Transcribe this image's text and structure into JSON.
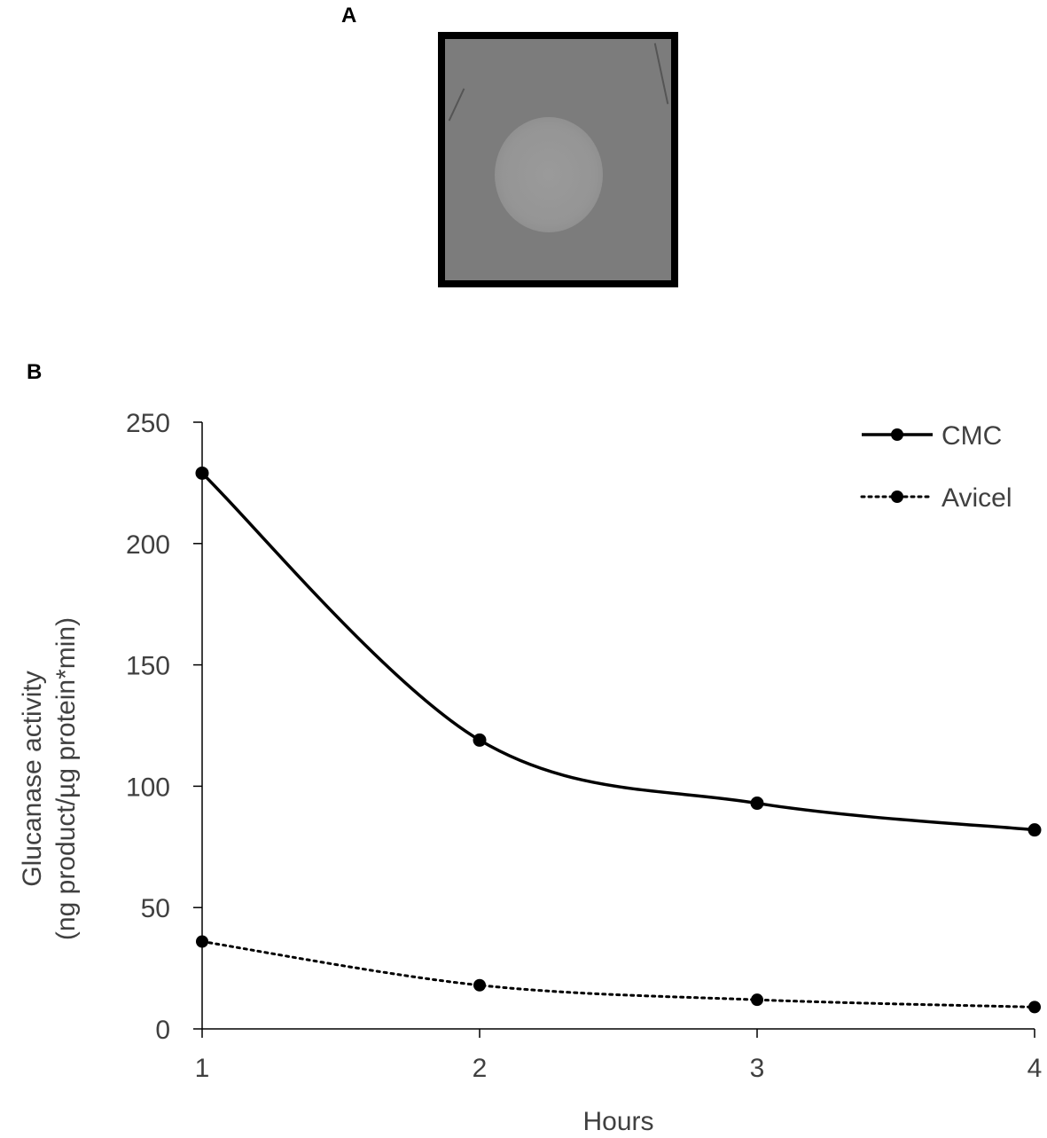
{
  "panels": {
    "a_label": "A",
    "b_label": "B"
  },
  "chart_data": {
    "type": "line",
    "x": [
      1,
      2,
      3,
      4
    ],
    "xlabel": "Hours",
    "ylabel_line1": "Glucanase  activity",
    "ylabel_line2": "(ng product/µg protein*min)",
    "ylim": [
      0,
      250
    ],
    "yticks": [
      0,
      50,
      100,
      150,
      200,
      250
    ],
    "xticks": [
      1,
      2,
      3,
      4
    ],
    "legend_position": "top-right",
    "grid": false,
    "series": [
      {
        "name": "CMC",
        "style": "solid",
        "color": "#000000",
        "values": [
          229,
          119,
          93,
          82
        ]
      },
      {
        "name": "Avicel",
        "style": "dotted",
        "color": "#000000",
        "values": [
          36,
          18,
          12,
          9
        ]
      }
    ]
  }
}
